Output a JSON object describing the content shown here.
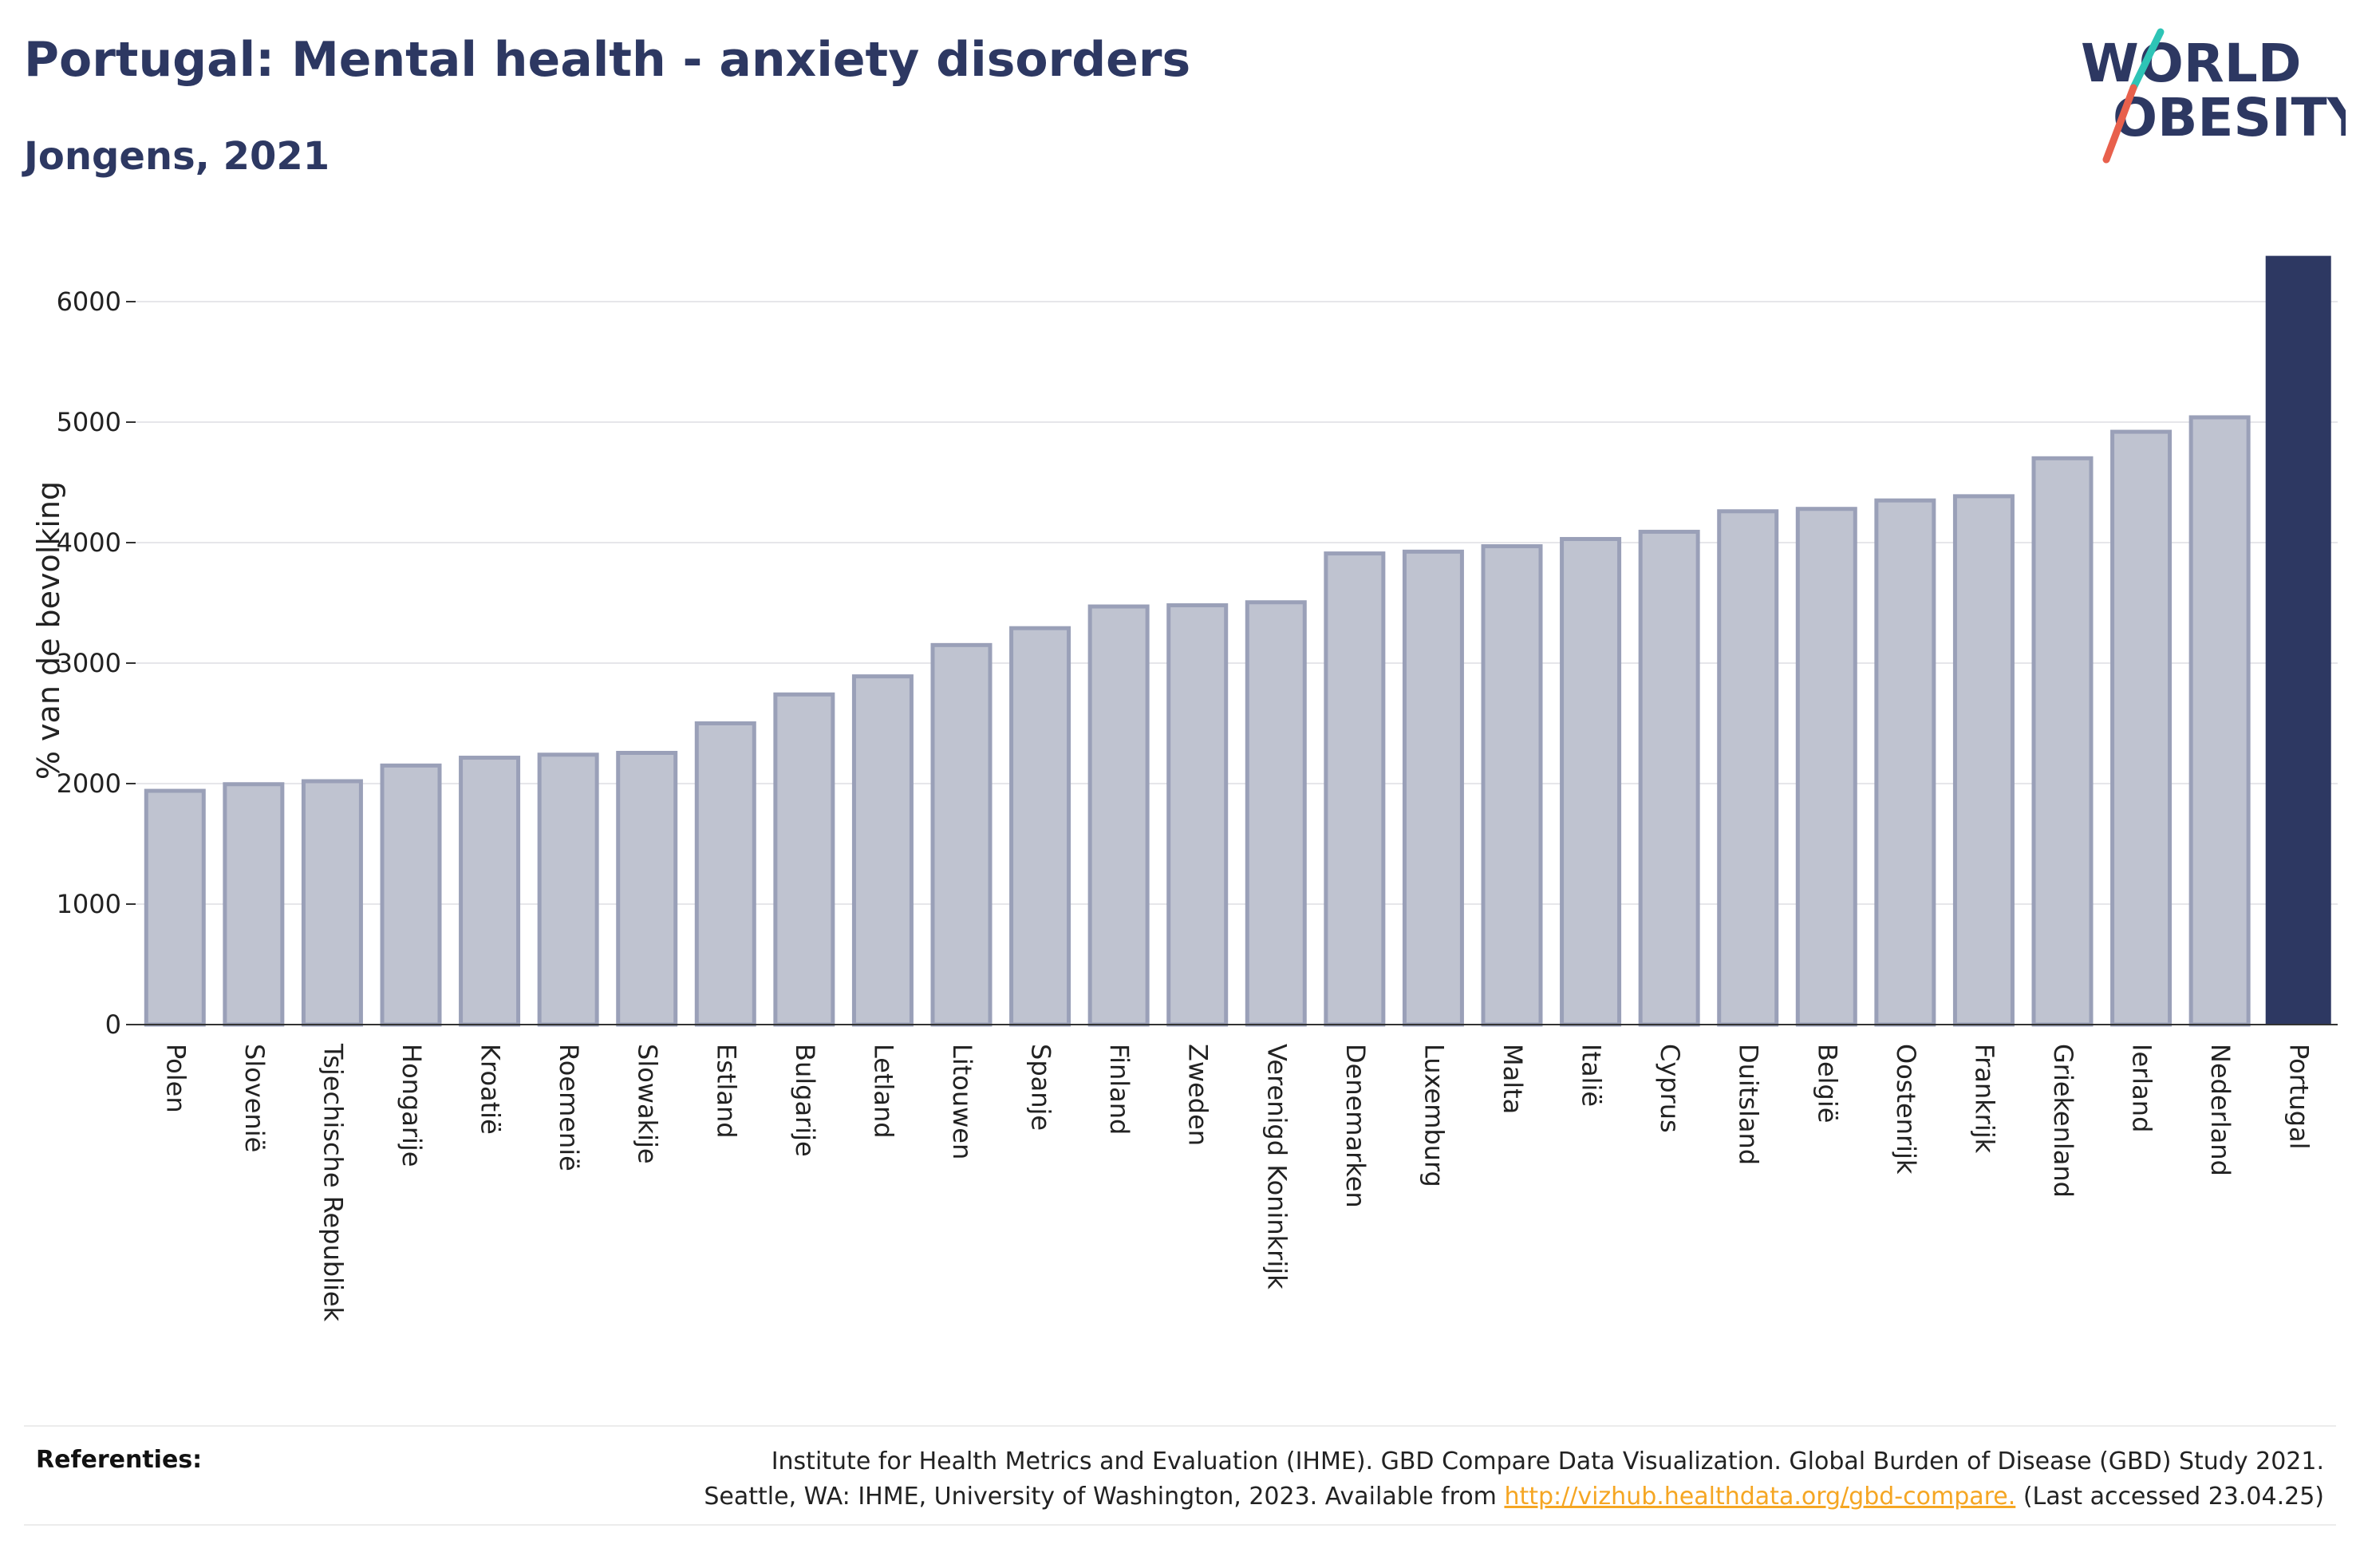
{
  "header": {
    "title": "Portugal: Mental health - anxiety disorders",
    "subtitle": "Jongens, 2021"
  },
  "logo": {
    "line1": "WORLD",
    "line2": "OBESITY",
    "slash_colors": [
      "#2ec4b6",
      "#e8604c"
    ],
    "text_color": "#2d3862"
  },
  "references": {
    "label": "Referenties:",
    "line1": "Institute for Health Metrics and Evaluation (IHME). GBD Compare Data Visualization. Global Burden of Disease (GBD) Study 2021.",
    "line2_prefix": "Seattle, WA: IHME, University of Washington, 2023. Available from ",
    "link": "http://vizhub.healthdata.org/gbd-compare.",
    "line2_suffix": " (Last accessed 23.04.25)"
  },
  "colors": {
    "bar_fill": "#bfc3d0",
    "bar_stroke": "#9aa0b8",
    "highlight": "#2d3862",
    "grid": "#e6e6ea"
  },
  "chart_data": {
    "type": "bar",
    "title": "Portugal: Mental health - anxiety disorders",
    "subtitle": "Jongens, 2021",
    "xlabel": "",
    "ylabel": "% van de bevolking",
    "ylim": [
      0,
      6500
    ],
    "yticks": [
      0,
      1000,
      2000,
      3000,
      4000,
      5000,
      6000
    ],
    "grid": true,
    "highlight_category": "Portugal",
    "categories": [
      "Polen",
      "Slovenië",
      "Tsjechische Republiek",
      "Hongarije",
      "Kroatië",
      "Roemenië",
      "Slowakije",
      "Estland",
      "Bulgarije",
      "Letland",
      "Litouwen",
      "Spanje",
      "Finland",
      "Zweden",
      "Verenigd Koninkrijk",
      "Denemarken",
      "Luxemburg",
      "Malta",
      "Italië",
      "Cyprus",
      "Duitsland",
      "België",
      "Oostenrijk",
      "Frankrijk",
      "Griekenland",
      "Ierland",
      "Nederland",
      "Portugal"
    ],
    "values": [
      1940,
      1995,
      2020,
      2150,
      2215,
      2240,
      2255,
      2500,
      2740,
      2890,
      3150,
      3290,
      3470,
      3480,
      3505,
      3910,
      3925,
      3970,
      4030,
      4090,
      4260,
      4280,
      4350,
      4385,
      4700,
      4920,
      5040,
      6380
    ]
  }
}
